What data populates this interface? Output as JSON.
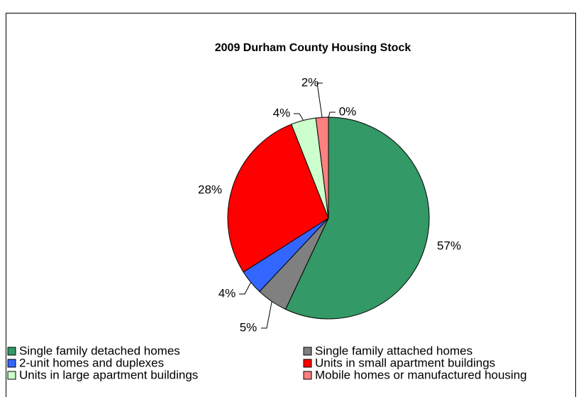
{
  "chart_data": {
    "type": "pie",
    "title": "2009 Durham County Housing Stock",
    "categories": [
      "Single family detached homes",
      "Single family attached homes",
      "2-unit homes and duplexes",
      "Units in small apartment buildings",
      "Units in large apartment buildings",
      "Mobile homes or manufactured housing",
      null
    ],
    "values": [
      57,
      5,
      4,
      28,
      4,
      2,
      0
    ],
    "value_labels": [
      "57%",
      "5%",
      "4%",
      "28%",
      "4%",
      "2%",
      "0%"
    ],
    "colors": [
      "#339966",
      "#808080",
      "#3366ff",
      "#ff0000",
      "#ccffcc",
      "#ff8080",
      "#000080"
    ],
    "legend": "bottom"
  }
}
